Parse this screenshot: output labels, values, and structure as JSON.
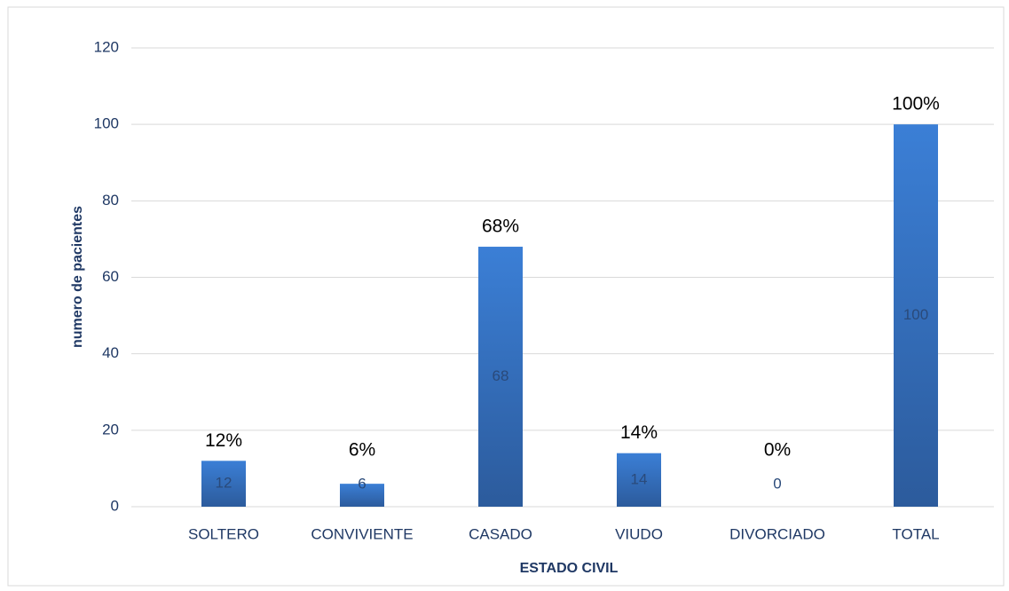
{
  "chart_data": {
    "type": "bar",
    "categories": [
      "SOLTERO",
      "CONVIVIENTE",
      "CASADO",
      "VIUDO",
      "DIVORCIADO",
      "TOTAL"
    ],
    "values": [
      12,
      6,
      68,
      14,
      0,
      100
    ],
    "value_labels": [
      "12%",
      "6%",
      "68%",
      "14%",
      "0%",
      "100%"
    ],
    "color": "#3a7bd0",
    "xlabel": "ESTADO CIVIL",
    "ylabel": "numero de pacientes",
    "ylim": [
      0,
      120
    ],
    "yticks": [
      0,
      20,
      40,
      60,
      80,
      100,
      120
    ],
    "grid": true
  }
}
